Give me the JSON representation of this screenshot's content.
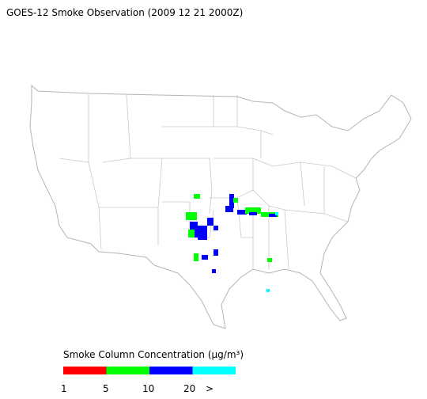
{
  "title": "GOES-12 Smoke Observation (2009 12 21  2000Z)",
  "legend": {
    "title": "Smoke Column Concentration (μg/m³)",
    "colors": [
      "#ff0000",
      "#00ff00",
      "#0000ff",
      "#00ffff"
    ],
    "labels": [
      "1",
      "5",
      "10",
      "20",
      ">"
    ]
  }
}
